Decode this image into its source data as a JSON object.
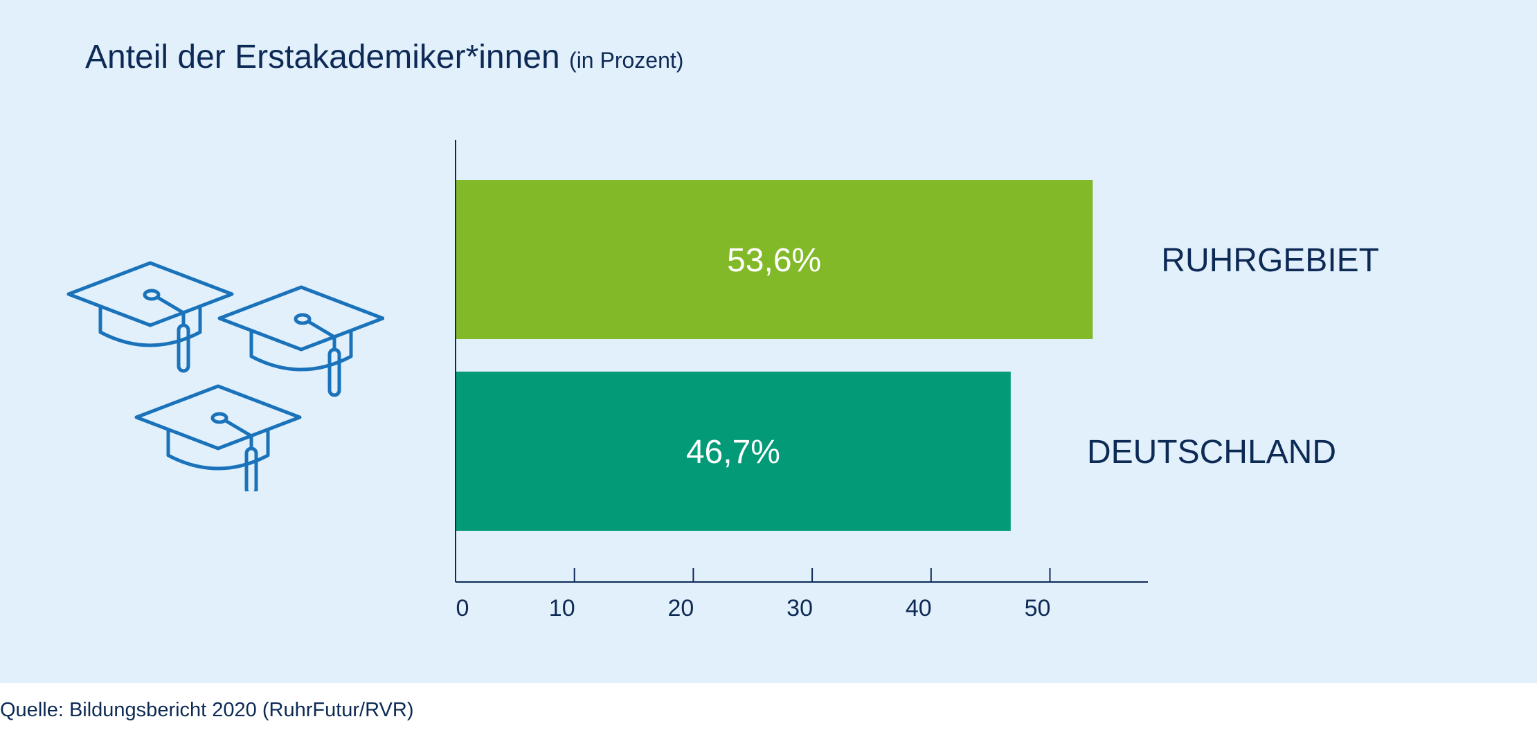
{
  "title": "Anteil der Erstakademiker*innen",
  "subtitle": "(in Prozent)",
  "source": "Quelle: Bildungsbericht 2020 (RuhrFutur/RVR)",
  "icon": "graduation-caps-icon",
  "colors": {
    "background": "#e2f0fc",
    "text": "#0d2a55",
    "icon": "#1a73ba",
    "ruhrgebiet": "#82b928",
    "deutschland": "#039a78",
    "bar_label": "#ffffff"
  },
  "chart_data": {
    "type": "bar",
    "orientation": "horizontal",
    "categories": [
      "RUHRGEBIET",
      "DEUTSCHLAND"
    ],
    "values": [
      53.6,
      46.7
    ],
    "value_labels": [
      "53,6%",
      "46,7%"
    ],
    "xticks": [
      0,
      10,
      20,
      30,
      40,
      50
    ],
    "xlim": [
      0,
      58.5
    ],
    "grid": false,
    "legend": "none"
  }
}
